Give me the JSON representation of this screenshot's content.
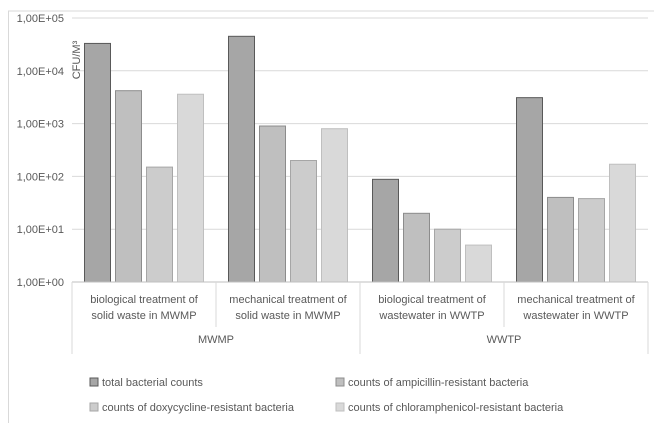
{
  "chart_data": {
    "type": "bar",
    "y_scale": "log",
    "ylabel": "CFU/M³",
    "ylim": [
      1,
      100000
    ],
    "y_ticks": [
      "1,00E+00",
      "1,00E+01",
      "1,00E+02",
      "1,00E+03",
      "1,00E+04",
      "1,00E+05"
    ],
    "grid": true,
    "legend_position": "bottom",
    "groups": [
      {
        "label": "MWMP",
        "categories": [
          0,
          1
        ]
      },
      {
        "label": "WWTP",
        "categories": [
          2,
          3
        ]
      }
    ],
    "categories": [
      [
        "biological treatment of",
        "solid waste in MWMP"
      ],
      [
        "mechanical treatment of",
        "solid waste in MWMP"
      ],
      [
        "biological treatment of",
        "wastewater in WWTP"
      ],
      [
        "mechanical treatment of",
        "wastewater in WWTP"
      ]
    ],
    "series": [
      {
        "name": "total bacterial counts",
        "color": "#a6a6a6",
        "values": [
          33000,
          45000,
          88,
          3100
        ]
      },
      {
        "name": "counts of ampicillin-resistant bacteria",
        "color": "#bfbfbf",
        "values": [
          4200,
          900,
          20,
          40
        ]
      },
      {
        "name": "counts of doxycycline-resistant bacteria",
        "color": "#cccccc",
        "values": [
          150,
          200,
          10,
          38
        ]
      },
      {
        "name": "counts of chloramphenicol-resistant bacteria",
        "color": "#d9d9d9",
        "values": [
          3600,
          800,
          5,
          170
        ]
      }
    ],
    "bar_outline_colors": [
      "#595959",
      "#8c8c8c",
      "#a6a6a6",
      "#bfbfbf"
    ]
  }
}
